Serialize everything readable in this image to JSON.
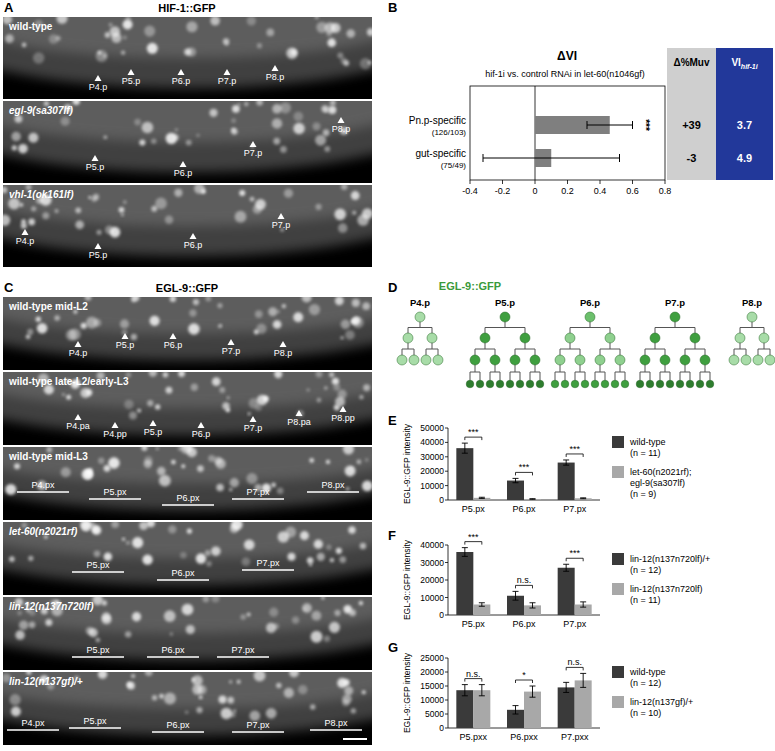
{
  "panel_labels": [
    "A",
    "B",
    "C",
    "D",
    "E",
    "F",
    "G"
  ],
  "hif_micrographs": {
    "title": "HIF-1::GFP",
    "label_style": "arrowhead",
    "images": [
      {
        "genotype": "wild-type",
        "labels": [
          "P4.p",
          "P5.p",
          "P6.p",
          "P7.p",
          "P8.p"
        ]
      },
      {
        "genotype": "egl-9(sa307lf)",
        "labels": [
          "P5.p",
          "P6.p",
          "P7.p",
          "P8.p"
        ]
      },
      {
        "genotype": "vhl-1(ok161lf)",
        "labels": [
          "P4.p",
          "P5.p",
          "P6.p",
          "P7.p"
        ]
      }
    ]
  },
  "egl9_micrographs": {
    "title": "EGL-9::GFP",
    "images": [
      {
        "genotype": "wild-type mid-L2",
        "label_style": "arrowhead",
        "labels": [
          "P4.p",
          "P5.p",
          "P6.p",
          "P7.p",
          "P8.p"
        ]
      },
      {
        "genotype": "wild-type late-L2/early-L3",
        "label_style": "arrowhead",
        "labels": [
          "P4.pa",
          "P4.pp",
          "P5.p",
          "P6.p",
          "P7.p",
          "P8.pa",
          "P8.pp"
        ]
      },
      {
        "genotype": "wild-type mid-L3",
        "label_style": "underline",
        "labels": [
          "P4.px",
          "P5.px",
          "P6.px",
          "P7.px",
          "P8.px"
        ]
      },
      {
        "genotype": "let-60(n2021rf)",
        "label_style": "underline",
        "labels": [
          "P5.px",
          "P6.px",
          "P7.px"
        ]
      },
      {
        "genotype": "lin-12(n137n720lf)",
        "label_style": "underline",
        "labels": [
          "P5.px",
          "P6.px",
          "P7.px"
        ]
      },
      {
        "genotype": "lin-12(n137gf)/+",
        "label_style": "underline",
        "labels": [
          "P4.px",
          "P5.px",
          "P6.px",
          "P7.px",
          "P8.px"
        ]
      }
    ]
  },
  "lineage": {
    "title": "EGL-9::GFP",
    "cells": [
      "P4.p",
      "P5.p",
      "P6.p",
      "P7.p",
      "P8.p"
    ]
  },
  "muv_table": {
    "columns": [
      {
        "header": "Δ%Muv",
        "values": [
          "+39",
          "-3"
        ],
        "color": "#cfcfcf"
      },
      {
        "header": "VI",
        "header_sub": "hif-1i",
        "values": [
          "3.7",
          "4.9"
        ],
        "color": "#22389a"
      }
    ]
  },
  "chart_data": [
    {
      "type": "bar",
      "orientation": "horizontal",
      "title": "ΔVI",
      "subtitle": "hif-1i vs. control RNAi in let-60(n1046gf)",
      "categories": [
        "Pn.p-specific",
        "gut-specific"
      ],
      "n_labels": [
        "(126/103)",
        "(75/49)"
      ],
      "values": [
        0.46,
        0.1
      ],
      "errors": [
        0.14,
        0.42
      ],
      "significance": [
        "***",
        null
      ],
      "color": "#7f7f7f",
      "xlim": [
        -0.4,
        0.8
      ],
      "xticks": [
        -0.4,
        -0.2,
        0,
        0.2,
        0.4,
        0.6,
        0.8
      ]
    },
    {
      "type": "bar",
      "ylabel": "EGL-9::GFP intensity",
      "categories": [
        "P5.px",
        "P6.px",
        "P7.px"
      ],
      "series": [
        {
          "name": "wild-type",
          "n_label": "(n = 11)",
          "color": "#3a3a3a",
          "values": [
            36000,
            13500,
            26000
          ],
          "errors": [
            3500,
            1500,
            1800
          ]
        },
        {
          "name": "let-60(n2021rf); egl-9(sa307lf)",
          "n_label": "(n = 9)",
          "color": "#a8a8a8",
          "values": [
            1500,
            700,
            1200
          ],
          "errors": [
            400,
            200,
            300
          ]
        }
      ],
      "significance": [
        "***",
        "***",
        "***"
      ],
      "ylim": [
        0,
        50000
      ],
      "yticks": [
        0,
        10000,
        20000,
        30000,
        40000,
        50000
      ],
      "legend": "right"
    },
    {
      "type": "bar",
      "ylabel": "EGL-9::GFP intensity",
      "categories": [
        "P5.px",
        "P6.px",
        "P7.px"
      ],
      "series": [
        {
          "name": "lin-12(n137n720lf)/+",
          "n_label": "(n = 12)",
          "color": "#3a3a3a",
          "values": [
            36000,
            11000,
            27000
          ],
          "errors": [
            2500,
            2500,
            2000
          ]
        },
        {
          "name": "lin-12(n137n720lf)",
          "n_label": "(n = 11)",
          "color": "#a8a8a8",
          "values": [
            6000,
            5500,
            6000
          ],
          "errors": [
            1000,
            1500,
            1500
          ]
        }
      ],
      "significance": [
        "***",
        "n.s.",
        "***"
      ],
      "ylim": [
        0,
        40000
      ],
      "yticks": [
        0,
        10000,
        20000,
        30000,
        40000
      ],
      "legend": "right"
    },
    {
      "type": "bar",
      "ylabel": "EGL-9::GFP intensity",
      "categories": [
        "P5.pxx",
        "P6.pxx",
        "P7.pxx"
      ],
      "series": [
        {
          "name": "wild-type",
          "n_label": "(n = 12)",
          "color": "#3a3a3a",
          "values": [
            13500,
            6500,
            14500
          ],
          "errors": [
            2000,
            1500,
            1800
          ]
        },
        {
          "name": "lin-12(n137gf)/+",
          "n_label": "(n = 10)",
          "color": "#a8a8a8",
          "values": [
            13500,
            13000,
            17000
          ],
          "errors": [
            2000,
            2000,
            2500
          ]
        }
      ],
      "significance": [
        "n.s.",
        "*",
        "n.s."
      ],
      "ylim": [
        0,
        25000
      ],
      "yticks": [
        0,
        5000,
        10000,
        15000,
        20000,
        25000
      ],
      "legend": "right"
    }
  ]
}
